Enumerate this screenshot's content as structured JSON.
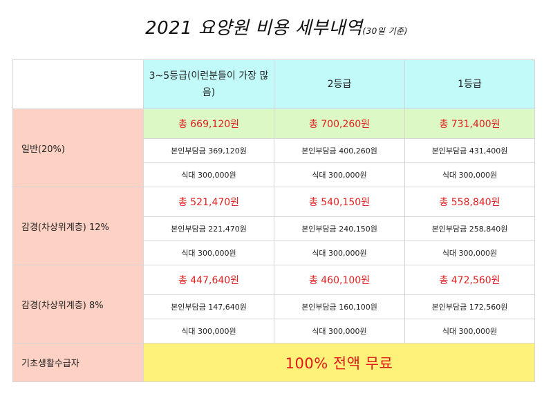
{
  "title": {
    "main": "2021 요양원 비용 세부내역",
    "sub": "(30일 기준)"
  },
  "header": {
    "grades": [
      "3~5등급(이런분들이 가장 많음)",
      "2등급",
      "1등급"
    ]
  },
  "groups": [
    {
      "label": "일반(20%)",
      "totals": [
        "총 669,120원",
        "총 700,260원",
        "총 731,400원"
      ],
      "copay": [
        "본인부담금 369,120원",
        "본인부담금 400,260원",
        "본인부담금 431,400원"
      ],
      "meal": [
        "식대 300,000원",
        "식대 300,000원",
        "식대 300,000원"
      ]
    },
    {
      "label": "감경(차상위계층) 12%",
      "totals": [
        "총 521,470원",
        "총 540,150원",
        "총 558,840원"
      ],
      "copay": [
        "본인부담금 221,470원",
        "본인부담금 240,150원",
        "본인부담금 258,840원"
      ],
      "meal": [
        "식대 300,000원",
        "식대 300,000원",
        "식대 300,000원"
      ]
    },
    {
      "label": "감경(차상위계층) 8%",
      "totals": [
        "총 447,640원",
        "총 460,100원",
        "총 472,560원"
      ],
      "copay": [
        "본인부담금 147,640원",
        "본인부담금 160,100원",
        "본인부담금 172,560원"
      ],
      "meal": [
        "식대 300,000원",
        "식대 300,000원",
        "식대 300,000원"
      ]
    }
  ],
  "basic": {
    "label": "기초생활수급자",
    "value": "100% 전액 무료"
  },
  "colors": {
    "row_header_bg": "#fdd1c4",
    "column_header_bg": "#c2fafa",
    "first_total_row_bg": "#dcf8c4",
    "free_row_bg": "#fff27a",
    "highlight_text": "#e02020"
  }
}
